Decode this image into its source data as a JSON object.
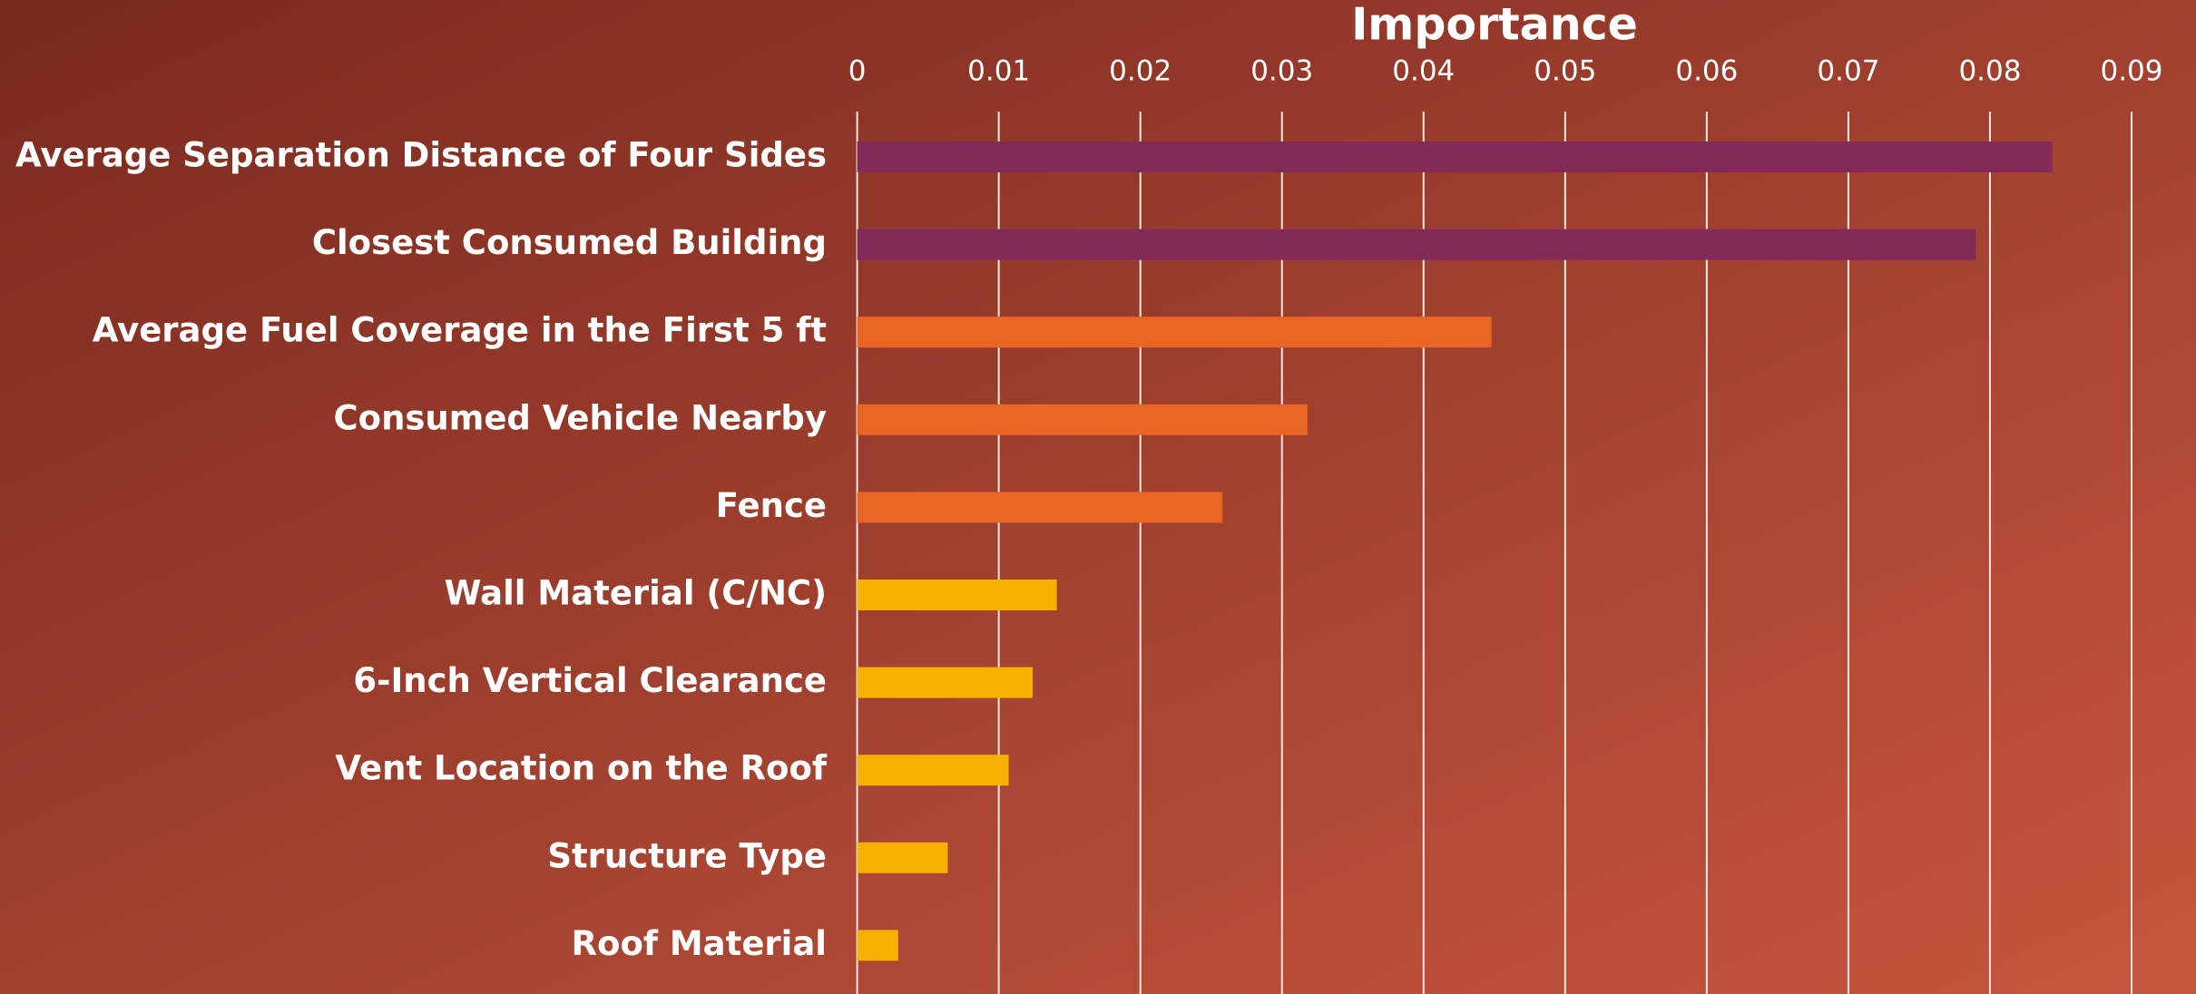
{
  "chart_data": {
    "type": "barh",
    "title": "Importance",
    "categories": [
      "Average Separation Distance of Four Sides",
      "Closest Consumed Building",
      "Average Fuel Coverage in the First 5 ft",
      "Consumed Vehicle Nearby",
      "Fence",
      "Wall Material (C/NC)",
      "6-Inch Vertical Clearance",
      "Vent Location on the Roof",
      "Structure Type",
      "Roof Material"
    ],
    "values": [
      0.0844,
      0.079,
      0.0448,
      0.0318,
      0.0258,
      0.0141,
      0.0124,
      0.0107,
      0.0064,
      0.0029
    ],
    "colors": [
      "#842a58",
      "#842a58",
      "#e86524",
      "#e86524",
      "#e86524",
      "#f5b000",
      "#f5b000",
      "#f5b000",
      "#f5b000",
      "#f5b000"
    ],
    "xlim": [
      0,
      0.09
    ],
    "xticks": [
      0,
      0.01,
      0.02,
      0.03,
      0.04,
      0.05,
      0.06,
      0.07,
      0.08,
      0.09
    ],
    "grid": true
  }
}
